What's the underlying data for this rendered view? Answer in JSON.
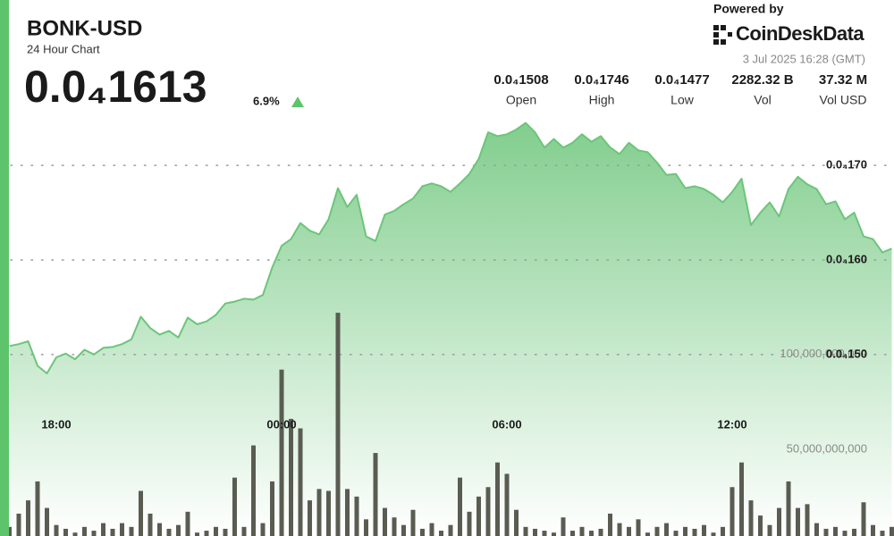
{
  "header": {
    "title": "BONK-USD",
    "subtitle": "24 Hour Chart",
    "price": "0.0₄1613",
    "change": "6.9%",
    "powered_by": "Powered by",
    "brand": "CoinDeskData",
    "timestamp": "3 Jul 2025 16:28 (GMT)",
    "stats": [
      {
        "value": "0.0₄1508",
        "label": "Open"
      },
      {
        "value": "0.0₄1746",
        "label": "High"
      },
      {
        "value": "0.0₄1477",
        "label": "Low"
      },
      {
        "value": "2282.32 B",
        "label": "Vol"
      },
      {
        "value": "37.32 M",
        "label": "Vol USD"
      }
    ]
  },
  "chart_data": {
    "type": "line",
    "categories": [
      null,
      null,
      null,
      null,
      null,
      "18:00",
      null,
      null,
      null,
      null,
      null,
      null,
      null,
      null,
      null,
      null,
      null,
      null,
      null,
      null,
      null,
      null,
      null,
      null,
      null,
      null,
      null,
      null,
      null,
      "00:00",
      null,
      null,
      null,
      null,
      null,
      null,
      null,
      null,
      null,
      null,
      null,
      null,
      null,
      null,
      null,
      null,
      null,
      null,
      null,
      null,
      null,
      null,
      null,
      "06:00",
      null,
      null,
      null,
      null,
      null,
      null,
      null,
      null,
      null,
      null,
      null,
      null,
      null,
      null,
      null,
      null,
      null,
      null,
      null,
      null,
      null,
      null,
      null,
      "12:00",
      null,
      null,
      null,
      null,
      null,
      null,
      null,
      null,
      null,
      null,
      null,
      null,
      null,
      null,
      null,
      null,
      null
    ],
    "series": [
      {
        "type": "area",
        "color": "#6cc57a",
        "values": [
          1.509e-05,
          1.511e-05,
          1.514e-05,
          1.488e-05,
          1.48e-05,
          1.497e-05,
          1.501e-05,
          1.495e-05,
          1.505e-05,
          1.5e-05,
          1.507e-05,
          1.508e-05,
          1.511e-05,
          1.516e-05,
          1.54e-05,
          1.528e-05,
          1.521e-05,
          1.525e-05,
          1.518e-05,
          1.539e-05,
          1.532e-05,
          1.535e-05,
          1.542e-05,
          1.554e-05,
          1.556e-05,
          1.559e-05,
          1.558e-05,
          1.563e-05,
          1.592e-05,
          1.615e-05,
          1.622e-05,
          1.639e-05,
          1.631e-05,
          1.627e-05,
          1.643e-05,
          1.676e-05,
          1.656e-05,
          1.669e-05,
          1.625e-05,
          1.62e-05,
          1.648e-05,
          1.652e-05,
          1.659e-05,
          1.665e-05,
          1.678e-05,
          1.681e-05,
          1.678e-05,
          1.672e-05,
          1.681e-05,
          1.691e-05,
          1.707e-05,
          1.735e-05,
          1.731e-05,
          1.733e-05,
          1.738e-05,
          1.745e-05,
          1.735e-05,
          1.719e-05,
          1.728e-05,
          1.719e-05,
          1.724e-05,
          1.733e-05,
          1.725e-05,
          1.731e-05,
          1.719e-05,
          1.712e-05,
          1.724e-05,
          1.716e-05,
          1.714e-05,
          1.703e-05,
          1.69e-05,
          1.691e-05,
          1.676e-05,
          1.678e-05,
          1.675e-05,
          1.669e-05,
          1.661e-05,
          1.672e-05,
          1.686e-05,
          1.637e-05,
          1.65e-05,
          1.661e-05,
          1.646e-05,
          1.675e-05,
          1.688e-05,
          1.68e-05,
          1.675e-05,
          1.659e-05,
          1.662e-05,
          1.643e-05,
          1.65e-05,
          1.625e-05,
          1.622e-05,
          1.608e-05,
          1.612e-05
        ]
      },
      {
        "type": "bar",
        "axis": "y2",
        "color": "#5a5c52",
        "values": [
          9000000000.0,
          16000000000.0,
          23000000000.0,
          33000000000.0,
          19000000000.0,
          10000000000.0,
          8000000000.0,
          6000000000.0,
          9000000000.0,
          7000000000.0,
          11000000000.0,
          8000000000.0,
          11000000000.0,
          9000000000.0,
          28000000000.0,
          16000000000.0,
          11000000000.0,
          8000000000.0,
          10000000000.0,
          17000000000.0,
          6000000000.0,
          7000000000.0,
          9000000000.0,
          8000000000.0,
          35000000000.0,
          9000000000.0,
          52000000000.0,
          11000000000.0,
          33000000000.0,
          92000000000.0,
          66000000000.0,
          61000000000.0,
          23000000000.0,
          29000000000.0,
          28000000000.0,
          122000000000.0,
          29000000000.0,
          25000000000.0,
          13000000000.0,
          48000000000.0,
          19000000000.0,
          14000000000.0,
          10000000000.0,
          18000000000.0,
          8000000000.0,
          11000000000.0,
          7000000000.0,
          10000000000.0,
          35000000000.0,
          17000000000.0,
          25000000000.0,
          30000000000.0,
          43000000000.0,
          37000000000.0,
          18000000000.0,
          9000000000.0,
          8000000000.0,
          7000000000.0,
          6000000000.0,
          14000000000.0,
          7000000000.0,
          9000000000.0,
          7000000000.0,
          8000000000.0,
          16000000000.0,
          11000000000.0,
          9000000000.0,
          13000000000.0,
          6000000000.0,
          9000000000.0,
          11000000000.0,
          7000000000.0,
          9000000000.0,
          8000000000.0,
          10000000000.0,
          6000000000.0,
          9000000000.0,
          30000000000.0,
          43000000000.0,
          23000000000.0,
          15000000000.0,
          10000000000.0,
          19000000000.0,
          33000000000.0,
          19000000000.0,
          21000000000.0,
          11000000000.0,
          8000000000.0,
          9000000000.0,
          7000000000.0,
          8000000000.0,
          22000000000.0,
          10000000000.0,
          7000000000.0,
          9000000000.0
        ]
      }
    ],
    "ylim": [
      1.308e-05,
      1.875e-05
    ],
    "yticks": [
      {
        "value": 1.5e-05,
        "label": "0.0₄150"
      },
      {
        "value": 1.6e-05,
        "label": "0.0₄160"
      },
      {
        "value": 1.7e-05,
        "label": "0.0₄170"
      }
    ],
    "y2lim": [
      4200000000.0,
      287000000000.0
    ],
    "y2ticks": [
      {
        "value": 50000000000,
        "label": "50,000,000,000"
      },
      {
        "value": 100000000000,
        "label": "100,000,000,000"
      }
    ],
    "grid": true
  }
}
